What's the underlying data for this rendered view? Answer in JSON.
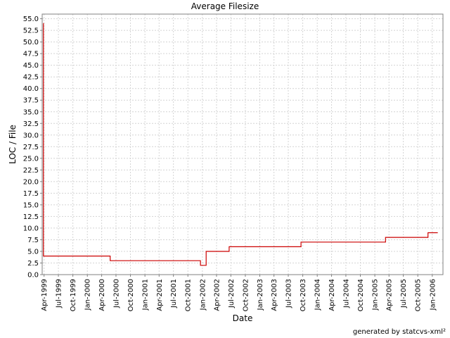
{
  "chart_data": {
    "type": "line",
    "title": "Average Filesize",
    "xlabel": "Date",
    "ylabel": "LOC / File",
    "ylim": [
      0,
      56
    ],
    "yticks": [
      0.0,
      2.5,
      5.0,
      7.5,
      10.0,
      12.5,
      15.0,
      17.5,
      20.0,
      22.5,
      25.0,
      27.5,
      30.0,
      32.5,
      35.0,
      37.5,
      40.0,
      42.5,
      45.0,
      47.5,
      50.0,
      52.5,
      55.0
    ],
    "ytick_labels": [
      "0.0",
      "2.5",
      "5.0",
      "7.5",
      "10.0",
      "12.5",
      "15.0",
      "17.5",
      "20.0",
      "22.5",
      "25.0",
      "27.5",
      "30.0",
      "32.5",
      "35.0",
      "37.5",
      "40.0",
      "42.5",
      "45.0",
      "47.5",
      "50.0",
      "52.5",
      "55.0"
    ],
    "xlim": [
      "1999-03-20",
      "2006-03-10"
    ],
    "xticks": [
      "1999-04-01",
      "1999-07-01",
      "1999-10-01",
      "2000-01-01",
      "2000-04-01",
      "2000-07-01",
      "2000-10-01",
      "2001-01-01",
      "2001-04-01",
      "2001-07-01",
      "2001-10-01",
      "2002-01-01",
      "2002-04-01",
      "2002-07-01",
      "2002-10-01",
      "2003-01-01",
      "2003-04-01",
      "2003-07-01",
      "2003-10-01",
      "2004-01-01",
      "2004-04-01",
      "2004-07-01",
      "2004-10-01",
      "2005-01-01",
      "2005-04-01",
      "2005-07-01",
      "2005-10-01",
      "2006-01-01"
    ],
    "xtick_labels": [
      "Apr-1999",
      "Jul-1999",
      "Oct-1999",
      "Jan-2000",
      "Apr-2000",
      "Jul-2000",
      "Oct-2000",
      "Jan-2001",
      "Apr-2001",
      "Jul-2001",
      "Oct-2001",
      "Jan-2002",
      "Apr-2002",
      "Jul-2002",
      "Oct-2002",
      "Jan-2003",
      "Apr-2003",
      "Jul-2003",
      "Oct-2003",
      "Jan-2004",
      "Apr-2004",
      "Jul-2004",
      "Oct-2004",
      "Jan-2005",
      "Apr-2005",
      "Jul-2005",
      "Oct-2005",
      "Jan-2006"
    ],
    "grid": true,
    "step": true,
    "line_color": "#cc0000",
    "series": [
      {
        "x": [
          "1999-03-27",
          "1999-03-28",
          "2000-05-25",
          "2001-12-20",
          "2002-01-25",
          "2002-06-20",
          "2003-09-20",
          "2005-03-10",
          "2005-12-05",
          "2006-02-05"
        ],
        "y": [
          54.0,
          4.0,
          3.0,
          2.0,
          5.0,
          6.0,
          7.0,
          8.0,
          9.0,
          9.0
        ]
      }
    ]
  },
  "footer": "generated by statcvs-xml²"
}
